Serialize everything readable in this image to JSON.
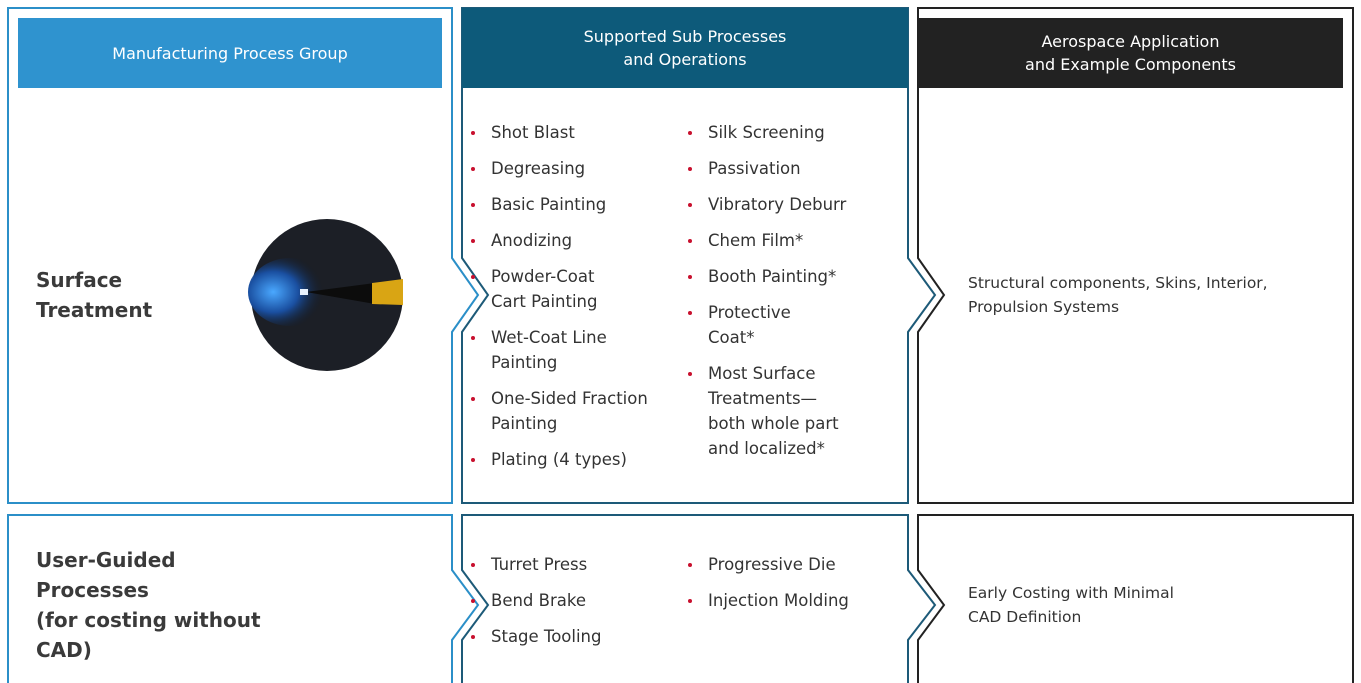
{
  "headers": [
    [
      "Manufacturing Process Group"
    ],
    [
      "Supported Sub Processes",
      "and Operations"
    ],
    [
      "Aerospace Application",
      "and Example Components"
    ]
  ],
  "rows": [
    {
      "group": [
        "Surface",
        "Treatment"
      ],
      "sub_processes": [
        [
          [
            "Shot Blast"
          ],
          [
            "Degreasing"
          ],
          [
            "Basic Painting"
          ],
          [
            "Anodizing"
          ],
          [
            "Powder-Coat",
            "Cart Painting"
          ],
          [
            "Wet-Coat Line",
            "Painting"
          ],
          [
            "One-Sided Fraction",
            "Painting"
          ],
          [
            "Plating (4 types)"
          ]
        ],
        [
          [
            "Silk Screening"
          ],
          [
            "Passivation"
          ],
          [
            "Vibratory Deburr"
          ],
          [
            "Chem Film*"
          ],
          [
            "Booth Painting*"
          ],
          [
            "Protective",
            "Coat*"
          ],
          [
            "Most Surface",
            "Treatments—",
            "both whole part",
            "and localized*"
          ]
        ]
      ],
      "application": [
        "Structural components, Skins, Interior,",
        "Propulsion Systems"
      ]
    },
    {
      "group": [
        "User-Guided Processes",
        "(for costing without CAD)"
      ],
      "sub_processes": [
        [
          [
            "Turret Press"
          ],
          [
            "Bend Brake"
          ],
          [
            "Stage Tooling"
          ]
        ],
        [
          [
            "Progressive Die"
          ],
          [
            "Injection Molding"
          ]
        ]
      ],
      "application": [
        "Early Costing with Minimal",
        "CAD Definition"
      ]
    }
  ]
}
